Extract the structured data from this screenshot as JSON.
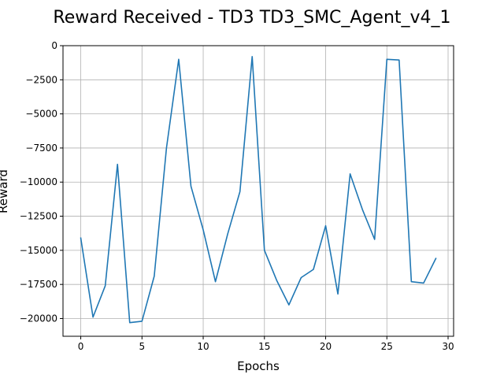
{
  "chart_data": {
    "type": "line",
    "title": "Reward Received - TD3 TD3_SMC_Agent_v4_1",
    "xlabel": "Epochs",
    "ylabel": "Reward",
    "xlim": [
      -1.45,
      30.45
    ],
    "ylim": [
      -21300,
      0
    ],
    "xticks": [
      0,
      5,
      10,
      15,
      20,
      25,
      30
    ],
    "yticks": [
      0,
      -2500,
      -5000,
      -7500,
      -10000,
      -12500,
      -15000,
      -17500,
      -20000
    ],
    "grid": true,
    "series": [
      {
        "color": "#1f77b4",
        "x": [
          0,
          1,
          2,
          3,
          4,
          5,
          6,
          7,
          8,
          9,
          10,
          11,
          12,
          13,
          14,
          15,
          16,
          17,
          18,
          19,
          20,
          21,
          22,
          23,
          24,
          25,
          26,
          27,
          28,
          29
        ],
        "y": [
          -14100,
          -19900,
          -17600,
          -8700,
          -20300,
          -20200,
          -16900,
          -7500,
          -1000,
          -10300,
          -13500,
          -17300,
          -13800,
          -10700,
          -800,
          -15000,
          -17200,
          -19000,
          -17000,
          -16400,
          -13200,
          -18200,
          -9400,
          -12000,
          -14200,
          -1000,
          -1050,
          -17300,
          -17400,
          -15600
        ]
      }
    ]
  }
}
